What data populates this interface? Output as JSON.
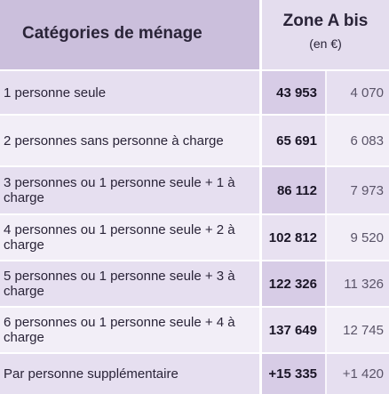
{
  "header": {
    "category_title": "Catégories de ménage",
    "zone_title": "Zone A bis",
    "zone_unit": "(en €)"
  },
  "rows": [
    {
      "label": "1 personne seule",
      "value": "43 953",
      "secondary": "4 070"
    },
    {
      "label": "2 personnes sans personne à charge",
      "value": "65 691",
      "secondary": "6 083"
    },
    {
      "label": "3 personnes ou 1 personne seule + 1 à charge",
      "value": "86 112",
      "secondary": "7 973"
    },
    {
      "label": "4 personnes ou 1 personne seule + 2 à charge",
      "value": "102 812",
      "secondary": "9 520"
    },
    {
      "label": "5 personnes ou 1 personne seule + 3 à charge",
      "value": "122 326",
      "secondary": "11 326"
    },
    {
      "label": "6 personnes ou 1 personne seule + 4 à charge",
      "value": "137 649",
      "secondary": "12 745"
    },
    {
      "label": "Par personne supplémentaire",
      "value": "+15 335",
      "secondary": "+1 420"
    }
  ],
  "colors": {
    "header_bg": "#cbbfdc",
    "zone_header_bg": "#e4ddee",
    "row_bg": "#e6dff0",
    "row_bg_alt": "#f2eef7",
    "value_col_bg": "#d7cce6",
    "text": "#2a2438"
  }
}
